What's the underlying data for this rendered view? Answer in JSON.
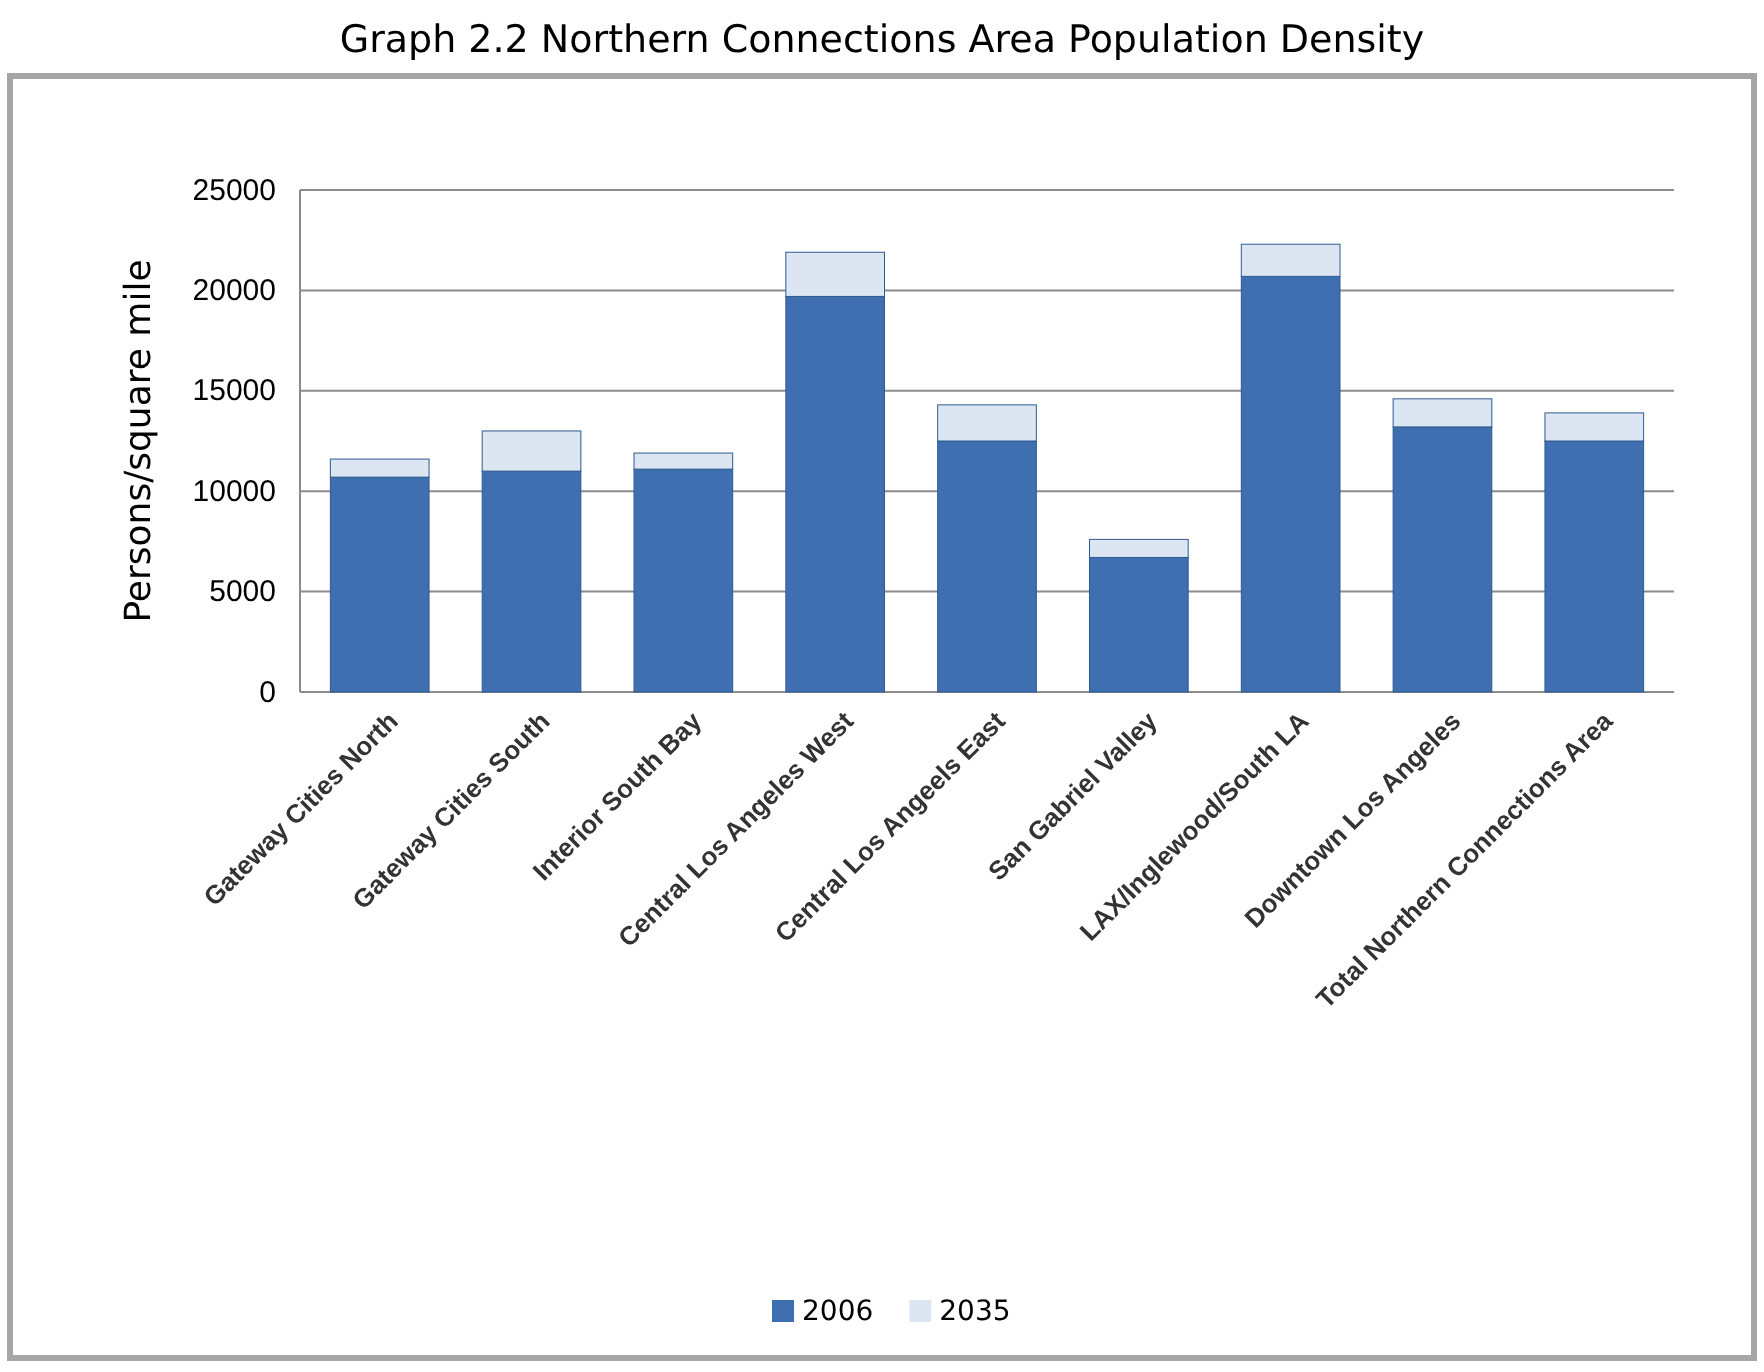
{
  "chart_data": {
    "type": "bar",
    "title": "Graph 2.2 Northern Connections Area Population Density",
    "ylabel": "Persons/square mile",
    "categories": [
      "Gateway Cities North",
      "Gateway Cities South",
      "Interior South Bay",
      "Central Los Angeles West",
      "Central Los Angeels East",
      "San Gabriel Valley",
      "LAX/Inglewood/South LA",
      "Downtown Los Angeles",
      "Total Northern Connections Area"
    ],
    "series": [
      {
        "name": "2006",
        "color": "#3f6fb0",
        "values": [
          10700,
          11000,
          11100,
          19700,
          12500,
          6700,
          20700,
          13200,
          12500
        ]
      },
      {
        "name": "2035",
        "color": "#dce6f2",
        "values": [
          900,
          2000,
          800,
          2200,
          1800,
          900,
          1600,
          1400,
          1400
        ]
      }
    ],
    "stacked": true,
    "ylim": [
      0,
      25000
    ],
    "yticks": [
      0,
      5000,
      10000,
      15000,
      20000,
      25000
    ],
    "grid": "y",
    "legend": "bottom"
  }
}
